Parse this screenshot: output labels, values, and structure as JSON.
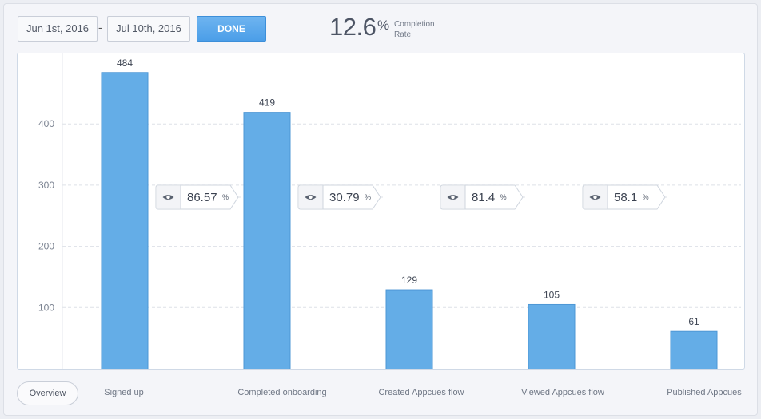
{
  "header": {
    "date_start": "Jun 1st, 2016",
    "date_separator": "-",
    "date_end": "Jul 10th, 2016",
    "done_label": "DONE",
    "completion_rate_value": "12.6",
    "completion_rate_unit": "%",
    "completion_rate_label_line1": "Completion",
    "completion_rate_label_line2": "Rate"
  },
  "footer": {
    "overview_label": "Overview"
  },
  "colors": {
    "bar": "#64ade7",
    "bar_stroke": "#4d97d6",
    "accent_button": "#4b9ee8"
  },
  "icons": {
    "conversion_badge_icon": "eye-icon"
  },
  "chart_data": {
    "type": "bar",
    "categories": [
      "Signed up",
      "Completed onboarding",
      "Created Appcues flow",
      "Viewed Appcues flow",
      "Published Appcues"
    ],
    "values": [
      484,
      419,
      129,
      105,
      61
    ],
    "data_labels": [
      "484",
      "419",
      "129",
      "105",
      "61"
    ],
    "conversions": [
      {
        "value": "86.57",
        "unit": "%"
      },
      {
        "value": "30.79",
        "unit": "%"
      },
      {
        "value": "81.4",
        "unit": "%"
      },
      {
        "value": "58.1",
        "unit": "%"
      }
    ],
    "yticks": [
      100,
      200,
      300,
      400
    ],
    "ylim": [
      0,
      520
    ],
    "grid": true,
    "title": "",
    "xlabel": "",
    "ylabel": ""
  }
}
